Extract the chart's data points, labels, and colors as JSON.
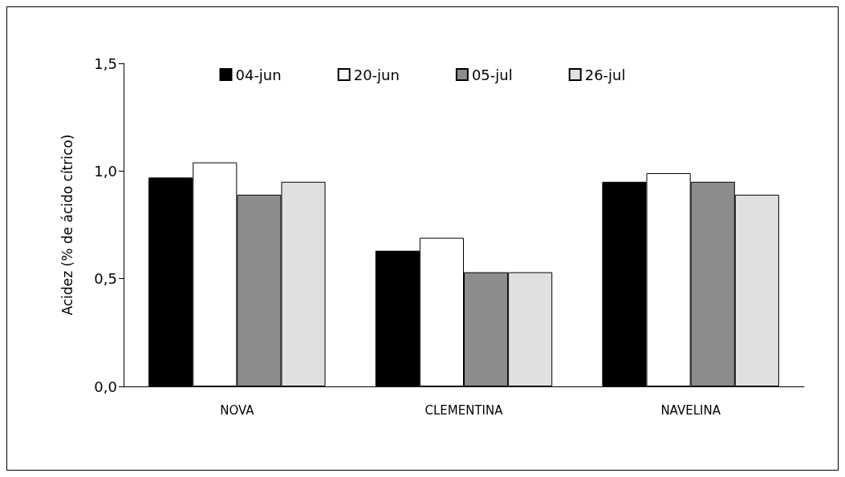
{
  "chart_data": {
    "type": "bar",
    "ylabel": "Acidez (% de ácido cítrico)",
    "categories": [
      "NOVA",
      "CLEMENTINA",
      "NAVELINA"
    ],
    "series": [
      {
        "name": "04-jun",
        "color": "#000000",
        "values": [
          0.97,
          0.63,
          0.95
        ]
      },
      {
        "name": "20-jun",
        "color": "#ffffff",
        "values": [
          1.04,
          0.69,
          0.99
        ]
      },
      {
        "name": "05-jul",
        "color": "#8c8c8c",
        "values": [
          0.89,
          0.53,
          0.95
        ]
      },
      {
        "name": "26-jul",
        "color": "#e0e0e0",
        "values": [
          0.95,
          0.53,
          0.89
        ]
      }
    ],
    "ylim": [
      0,
      1.5
    ],
    "yticks": [
      {
        "value": 0,
        "label": "0,0"
      },
      {
        "value": 0.5,
        "label": "0,5"
      },
      {
        "value": 1,
        "label": "1,0"
      },
      {
        "value": 1.5,
        "label": "1,5"
      }
    ],
    "grid": false,
    "legend": "top"
  }
}
